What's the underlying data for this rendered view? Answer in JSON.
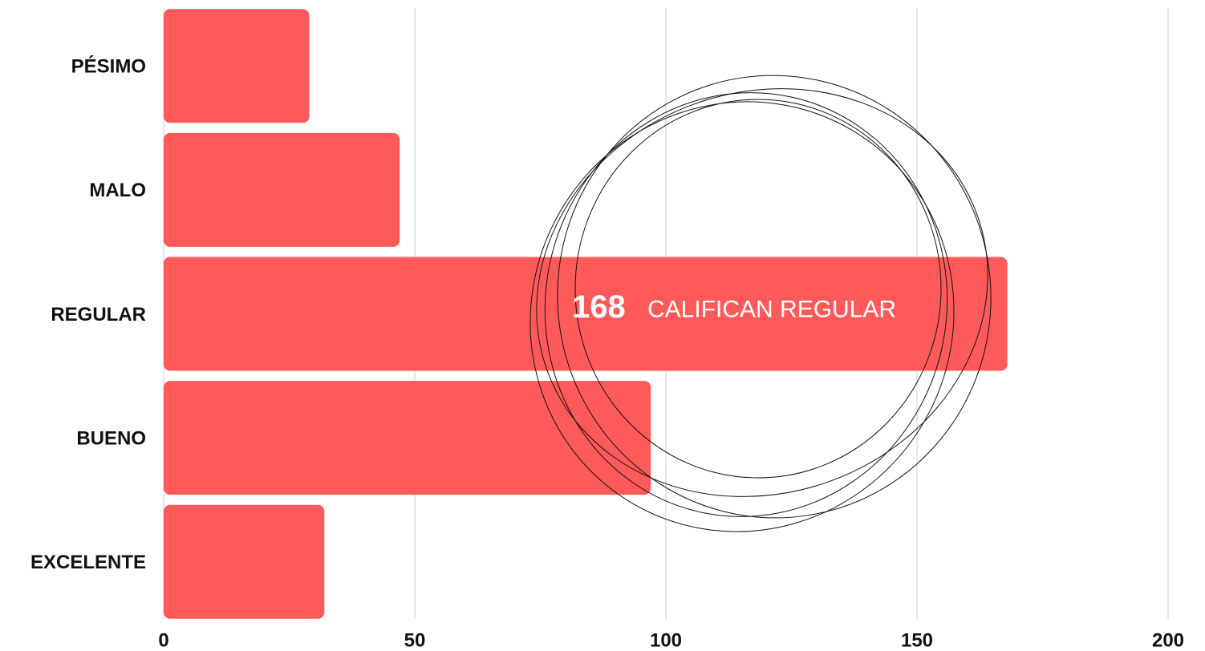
{
  "chart_data": {
    "type": "bar",
    "orientation": "horizontal",
    "categories": [
      "PÉSIMO",
      "MALO",
      "REGULAR",
      "BUENO",
      "EXCELENTE"
    ],
    "values": [
      29,
      47,
      168,
      97,
      32
    ],
    "color": "#ff5a5a",
    "xlim": [
      0,
      200
    ],
    "xticks": [
      0,
      50,
      100,
      150,
      200
    ],
    "grid": true,
    "annotation": "CALIFICAN REGULAR"
  }
}
